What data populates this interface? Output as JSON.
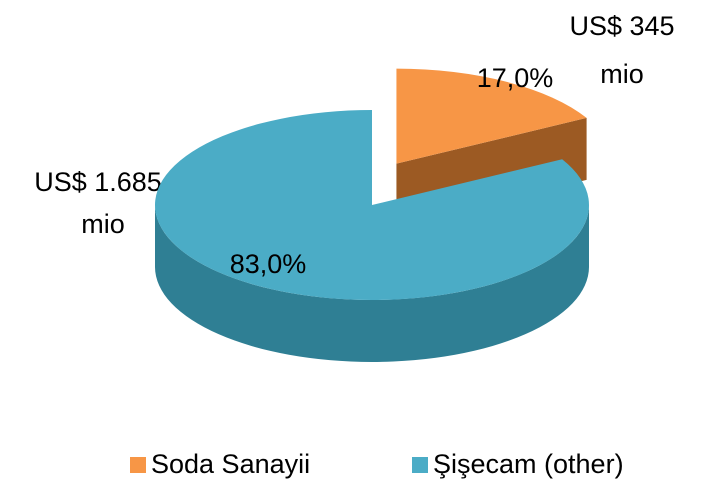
{
  "chart_data": {
    "type": "pie",
    "categories": [
      "Soda Sanayii",
      "Şişecam (other)"
    ],
    "values": [
      17.0,
      83.0
    ],
    "value_labels": [
      "17,0%",
      "83,0%"
    ],
    "colors": [
      "#f79646",
      "#4bacc6"
    ],
    "side_colors": [
      "#9c5a23",
      "#2f7f94"
    ],
    "annotations": [
      [
        "US$ 345",
        "mio"
      ],
      [
        "US$ 1.685",
        "mio"
      ]
    ],
    "legend": "bottom"
  }
}
